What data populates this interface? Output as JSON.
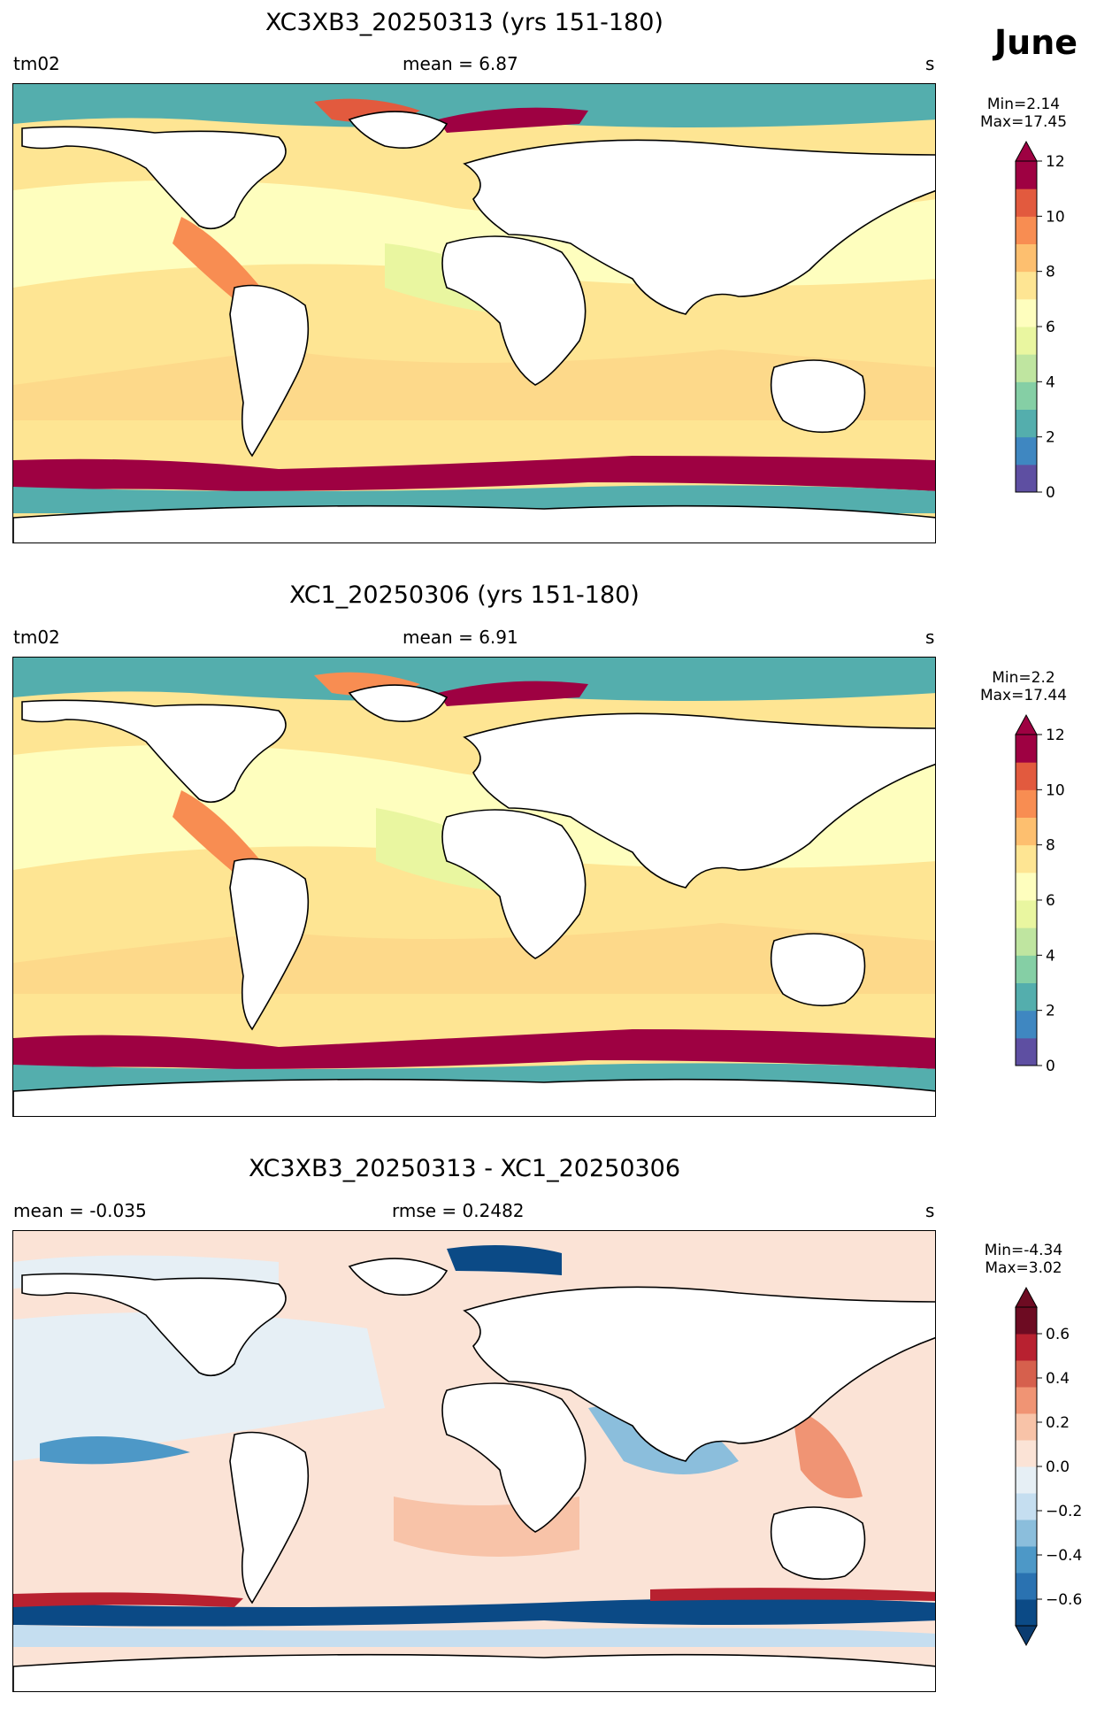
{
  "header": {
    "month": "June"
  },
  "panels": [
    {
      "id": "panel1",
      "title": "XC3XB3_20250313 (yrs 151-180)",
      "left_label": "tm02",
      "center_label": "mean = 6.87",
      "right_label": "s",
      "cbar_min": "Min=2.14",
      "cbar_max": "Max=17.45",
      "ticks": [
        "12",
        "10",
        "8",
        "6",
        "4",
        "2",
        "0"
      ],
      "colorbar": [
        "#5e4fa2",
        "#3f87c1",
        "#54aead",
        "#85cfa5",
        "#bfe5a0",
        "#e9f6a0",
        "#fefebe",
        "#fee593",
        "#fdbf6f",
        "#f88d52",
        "#e25a3e",
        "#9e0142"
      ],
      "over_color": "#9e0142"
    },
    {
      "id": "panel2",
      "title": "XC1_20250306 (yrs 151-180)",
      "left_label": "tm02",
      "center_label": "mean = 6.91",
      "right_label": "s",
      "cbar_min": "Min=2.2",
      "cbar_max": "Max=17.44",
      "ticks": [
        "12",
        "10",
        "8",
        "6",
        "4",
        "2",
        "0"
      ],
      "colorbar": [
        "#5e4fa2",
        "#3f87c1",
        "#54aead",
        "#85cfa5",
        "#bfe5a0",
        "#e9f6a0",
        "#fefebe",
        "#fee593",
        "#fdbf6f",
        "#f88d52",
        "#e25a3e",
        "#9e0142"
      ],
      "over_color": "#9e0142"
    },
    {
      "id": "panel3",
      "title": "XC3XB3_20250313 - XC1_20250306",
      "left_label": "mean = -0.035",
      "center_label": "rmse = 0.2482",
      "right_label": "s",
      "cbar_min": "Min=-4.34",
      "cbar_max": "Max=3.02",
      "ticks": [
        "0.6",
        "0.4",
        "0.2",
        "0.0",
        "−0.2",
        "−0.4",
        "−0.6"
      ],
      "colorbar": [
        "#0b4a86",
        "#2a72b1",
        "#4d98c7",
        "#8bbedc",
        "#c5def0",
        "#e6eff5",
        "#fbe3d6",
        "#f8c3a8",
        "#f09474",
        "#d6604d",
        "#b82130",
        "#6d0b22"
      ],
      "over_color": "#6d0b22",
      "under_color": "#0b3c70"
    }
  ],
  "colors": {
    "land": "#ffffff",
    "ice_shelf": "#54aead",
    "background_ocean_p1": "#fee593",
    "background_ocean_p3": "#fbe3d6"
  }
}
